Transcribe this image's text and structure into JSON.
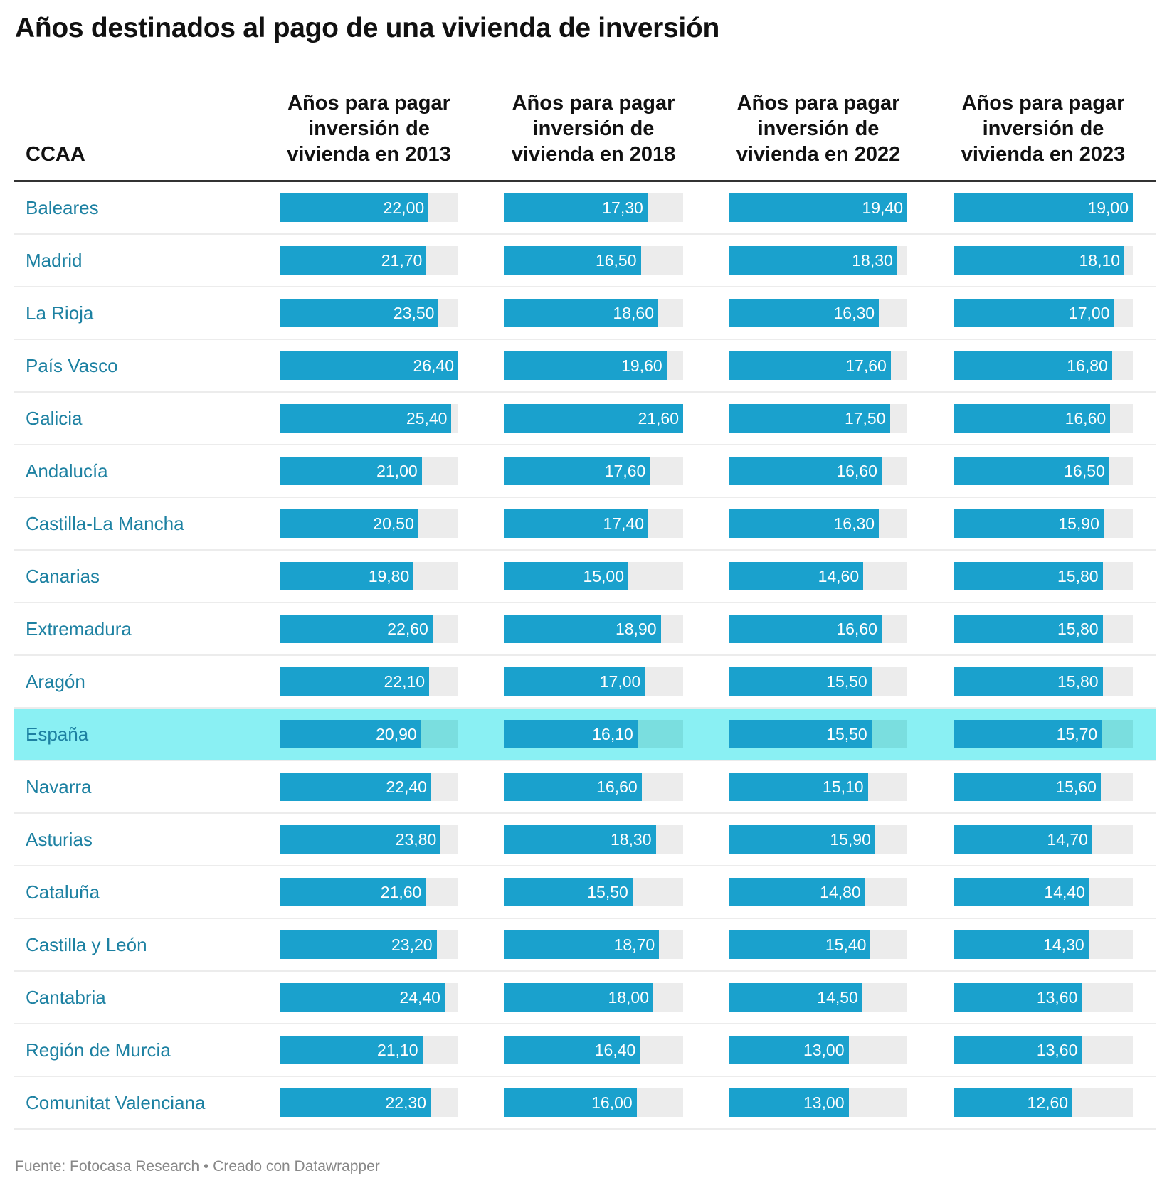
{
  "title": "Años destinados al pago de una vivienda de inversión",
  "footer": "Fuente: Fotocasa Research • Creado con Datawrapper",
  "colors": {
    "bar": "#1aa1cd",
    "track": "#ececec",
    "highlight_row": "#8af0f3",
    "label": "#1d81a2"
  },
  "chart_data": {
    "type": "table",
    "columns": [
      "CCAA",
      "Años para pagar inversión de vivienda en 2013",
      "Años para pagar inversión de vivienda en 2018",
      "Años para pagar inversión de vivienda en 2022",
      "Años para pagar inversión de vivienda en 2023"
    ],
    "highlighted_row": "España",
    "rows": [
      {
        "name": "Baleares",
        "values": [
          22.0,
          17.3,
          19.4,
          19.0
        ],
        "labels": [
          "22,00",
          "17,30",
          "19,40",
          "19,00"
        ]
      },
      {
        "name": "Madrid",
        "values": [
          21.7,
          16.5,
          18.3,
          18.1
        ],
        "labels": [
          "21,70",
          "16,50",
          "18,30",
          "18,10"
        ]
      },
      {
        "name": "La Rioja",
        "values": [
          23.5,
          18.6,
          16.3,
          17.0
        ],
        "labels": [
          "23,50",
          "18,60",
          "16,30",
          "17,00"
        ]
      },
      {
        "name": "País Vasco",
        "values": [
          26.4,
          19.6,
          17.6,
          16.8
        ],
        "labels": [
          "26,40",
          "19,60",
          "17,60",
          "16,80"
        ]
      },
      {
        "name": "Galicia",
        "values": [
          25.4,
          21.6,
          17.5,
          16.6
        ],
        "labels": [
          "25,40",
          "21,60",
          "17,50",
          "16,60"
        ]
      },
      {
        "name": "Andalucía",
        "values": [
          21.0,
          17.6,
          16.6,
          16.5
        ],
        "labels": [
          "21,00",
          "17,60",
          "16,60",
          "16,50"
        ]
      },
      {
        "name": "Castilla-La Mancha",
        "values": [
          20.5,
          17.4,
          16.3,
          15.9
        ],
        "labels": [
          "20,50",
          "17,40",
          "16,30",
          "15,90"
        ]
      },
      {
        "name": "Canarias",
        "values": [
          19.8,
          15.0,
          14.6,
          15.8
        ],
        "labels": [
          "19,80",
          "15,00",
          "14,60",
          "15,80"
        ]
      },
      {
        "name": "Extremadura",
        "values": [
          22.6,
          18.9,
          16.6,
          15.8
        ],
        "labels": [
          "22,60",
          "18,90",
          "16,60",
          "15,80"
        ]
      },
      {
        "name": "Aragón",
        "values": [
          22.1,
          17.0,
          15.5,
          15.8
        ],
        "labels": [
          "22,10",
          "17,00",
          "15,50",
          "15,80"
        ]
      },
      {
        "name": "España",
        "values": [
          20.9,
          16.1,
          15.5,
          15.7
        ],
        "labels": [
          "20,90",
          "16,10",
          "15,50",
          "15,70"
        ]
      },
      {
        "name": "Navarra",
        "values": [
          22.4,
          16.6,
          15.1,
          15.6
        ],
        "labels": [
          "22,40",
          "16,60",
          "15,10",
          "15,60"
        ]
      },
      {
        "name": "Asturias",
        "values": [
          23.8,
          18.3,
          15.9,
          14.7
        ],
        "labels": [
          "23,80",
          "18,30",
          "15,90",
          "14,70"
        ]
      },
      {
        "name": "Cataluña",
        "values": [
          21.6,
          15.5,
          14.8,
          14.4
        ],
        "labels": [
          "21,60",
          "15,50",
          "14,80",
          "14,40"
        ]
      },
      {
        "name": "Castilla y León",
        "values": [
          23.2,
          18.7,
          15.4,
          14.3
        ],
        "labels": [
          "23,20",
          "18,70",
          "15,40",
          "14,30"
        ]
      },
      {
        "name": "Cantabria",
        "values": [
          24.4,
          18.0,
          14.5,
          13.6
        ],
        "labels": [
          "24,40",
          "18,00",
          "14,50",
          "13,60"
        ]
      },
      {
        "name": "Región de Murcia",
        "values": [
          21.1,
          16.4,
          13.0,
          13.6
        ],
        "labels": [
          "21,10",
          "16,40",
          "13,00",
          "13,60"
        ]
      },
      {
        "name": "Comunitat Valenciana",
        "values": [
          22.3,
          16.0,
          13.0,
          12.6
        ],
        "labels": [
          "22,30",
          "16,00",
          "13,00",
          "12,60"
        ]
      }
    ]
  }
}
